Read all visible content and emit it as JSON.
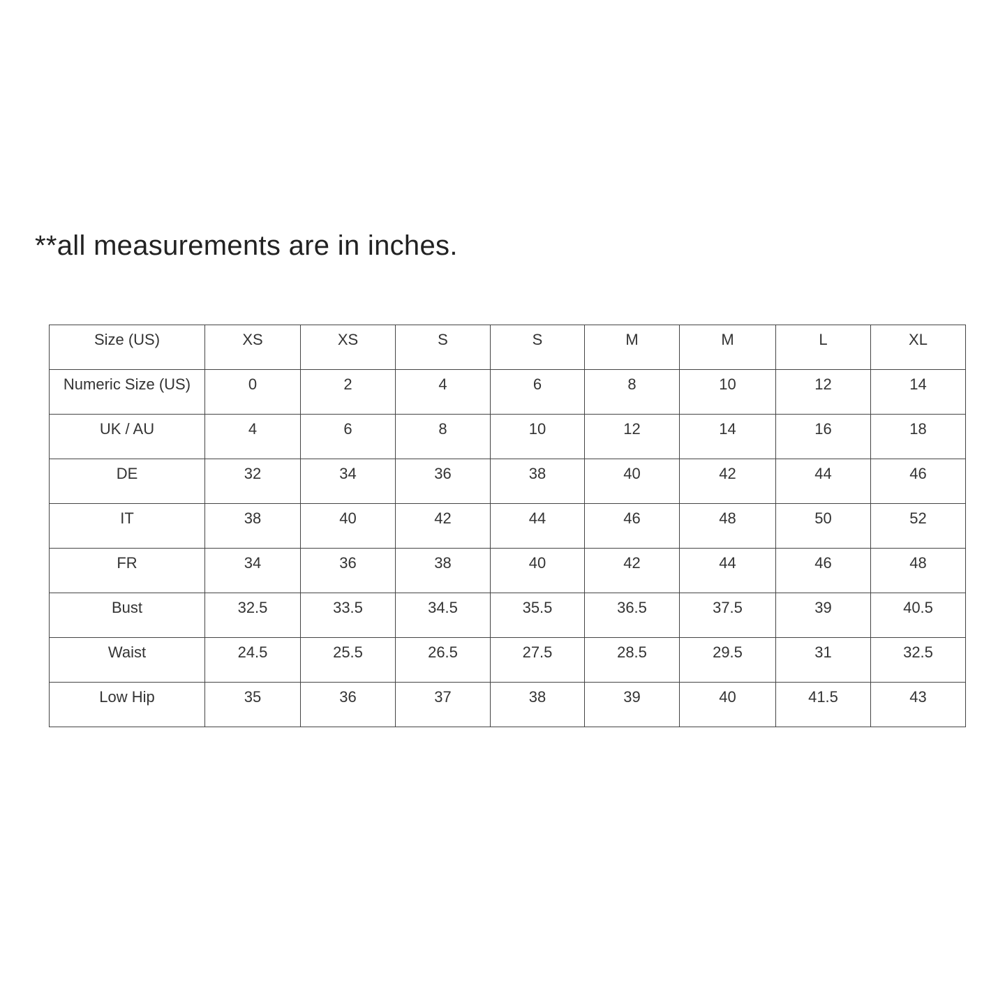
{
  "note": "**all measurements are in inches.",
  "table": {
    "rows": [
      [
        "Size (US)",
        "XS",
        "XS",
        "S",
        "S",
        "M",
        "M",
        "L",
        "XL"
      ],
      [
        "Numeric Size (US)",
        "0",
        "2",
        "4",
        "6",
        "8",
        "10",
        "12",
        "14"
      ],
      [
        "UK / AU",
        "4",
        "6",
        "8",
        "10",
        "12",
        "14",
        "16",
        "18"
      ],
      [
        "DE",
        "32",
        "34",
        "36",
        "38",
        "40",
        "42",
        "44",
        "46"
      ],
      [
        "IT",
        "38",
        "40",
        "42",
        "44",
        "46",
        "48",
        "50",
        "52"
      ],
      [
        "FR",
        "34",
        "36",
        "38",
        "40",
        "42",
        "44",
        "46",
        "48"
      ],
      [
        "Bust",
        "32.5",
        "33.5",
        "34.5",
        "35.5",
        "36.5",
        "37.5",
        "39",
        "40.5"
      ],
      [
        "Waist",
        "24.5",
        "25.5",
        "26.5",
        "27.5",
        "28.5",
        "29.5",
        "31",
        "32.5"
      ],
      [
        "Low Hip",
        "35",
        "36",
        "37",
        "38",
        "39",
        "40",
        "41.5",
        "43"
      ]
    ]
  }
}
